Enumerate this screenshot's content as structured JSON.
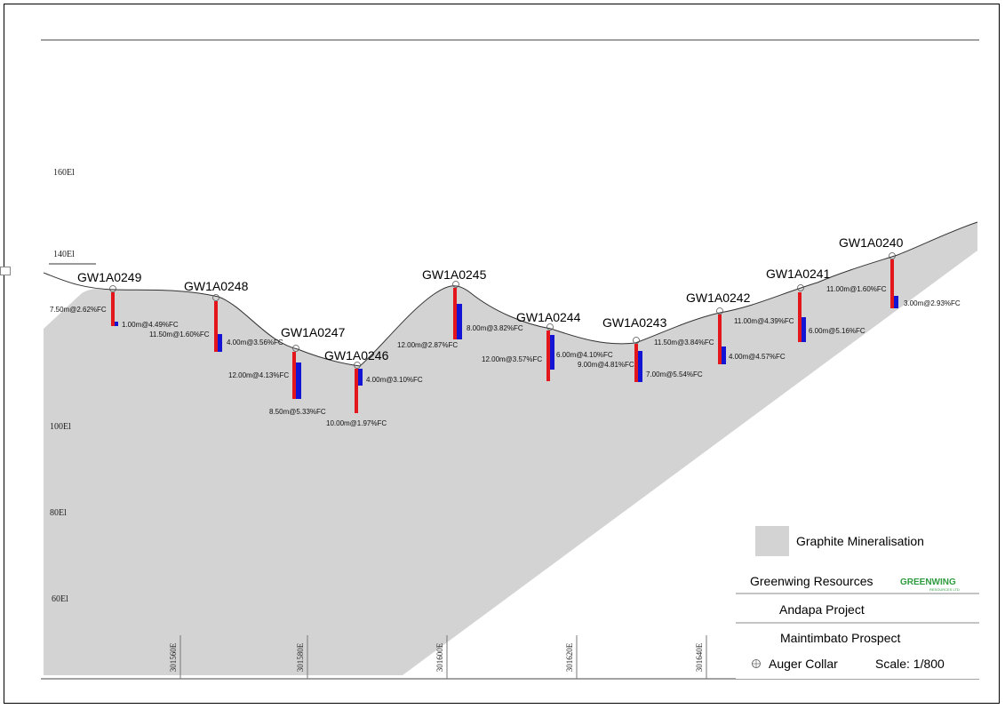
{
  "elevations": [
    "160El",
    "140El",
    "100El",
    "80El",
    "60El"
  ],
  "eastings": [
    "301560E",
    "301580E",
    "301600E",
    "301620E",
    "301640E"
  ],
  "holes": [
    {
      "name": "GW1A0249",
      "intervals": [
        "7.50m@2.62%FC",
        "1.00m@4.49%FC"
      ]
    },
    {
      "name": "GW1A0248",
      "intervals": [
        "11.50m@1.60%FC",
        "4.00m@3.56%FC"
      ]
    },
    {
      "name": "GW1A0247",
      "intervals": [
        "12.00m@4.13%FC",
        "8.50m@5.33%FC"
      ]
    },
    {
      "name": "GW1A0246",
      "intervals": [
        "4.00m@3.10%FC",
        "10.00m@1.97%FC"
      ]
    },
    {
      "name": "GW1A0245",
      "intervals": [
        "12.00m@2.87%FC",
        "8.00m@3.82%FC"
      ]
    },
    {
      "name": "GW1A0244",
      "intervals": [
        "12.00m@3.57%FC",
        "6.00m@4.10%FC"
      ]
    },
    {
      "name": "GW1A0243",
      "intervals": [
        "9.00m@4.81%FC",
        "11.50m@3.84%FC",
        "7.00m@5.54%FC"
      ]
    },
    {
      "name": "GW1A0242",
      "intervals": [
        "11.00m@4.39%FC",
        "4.00m@4.57%FC"
      ]
    },
    {
      "name": "GW1A0241",
      "intervals": [
        "11.00m@1.60%FC",
        "6.00m@5.16%FC"
      ]
    },
    {
      "name": "GW1A0240",
      "intervals": [
        "3.00m@2.93%FC"
      ]
    }
  ],
  "legend": {
    "mineralisation": "Graphite Mineralisation",
    "company": "Greenwing Resources",
    "logo_text": "GREENWING",
    "logo_sub": "RESOURCES LTD",
    "project": "Andapa Project",
    "prospect": "Maintimbato Prospect",
    "collar": "Auger Collar",
    "scale": "Scale: 1/800"
  },
  "colors": {
    "mineralisation": "#d3d3d3",
    "interval_red": "#e3161b",
    "interval_blue": "#1414d4",
    "logo_green": "#2e9b3e"
  }
}
